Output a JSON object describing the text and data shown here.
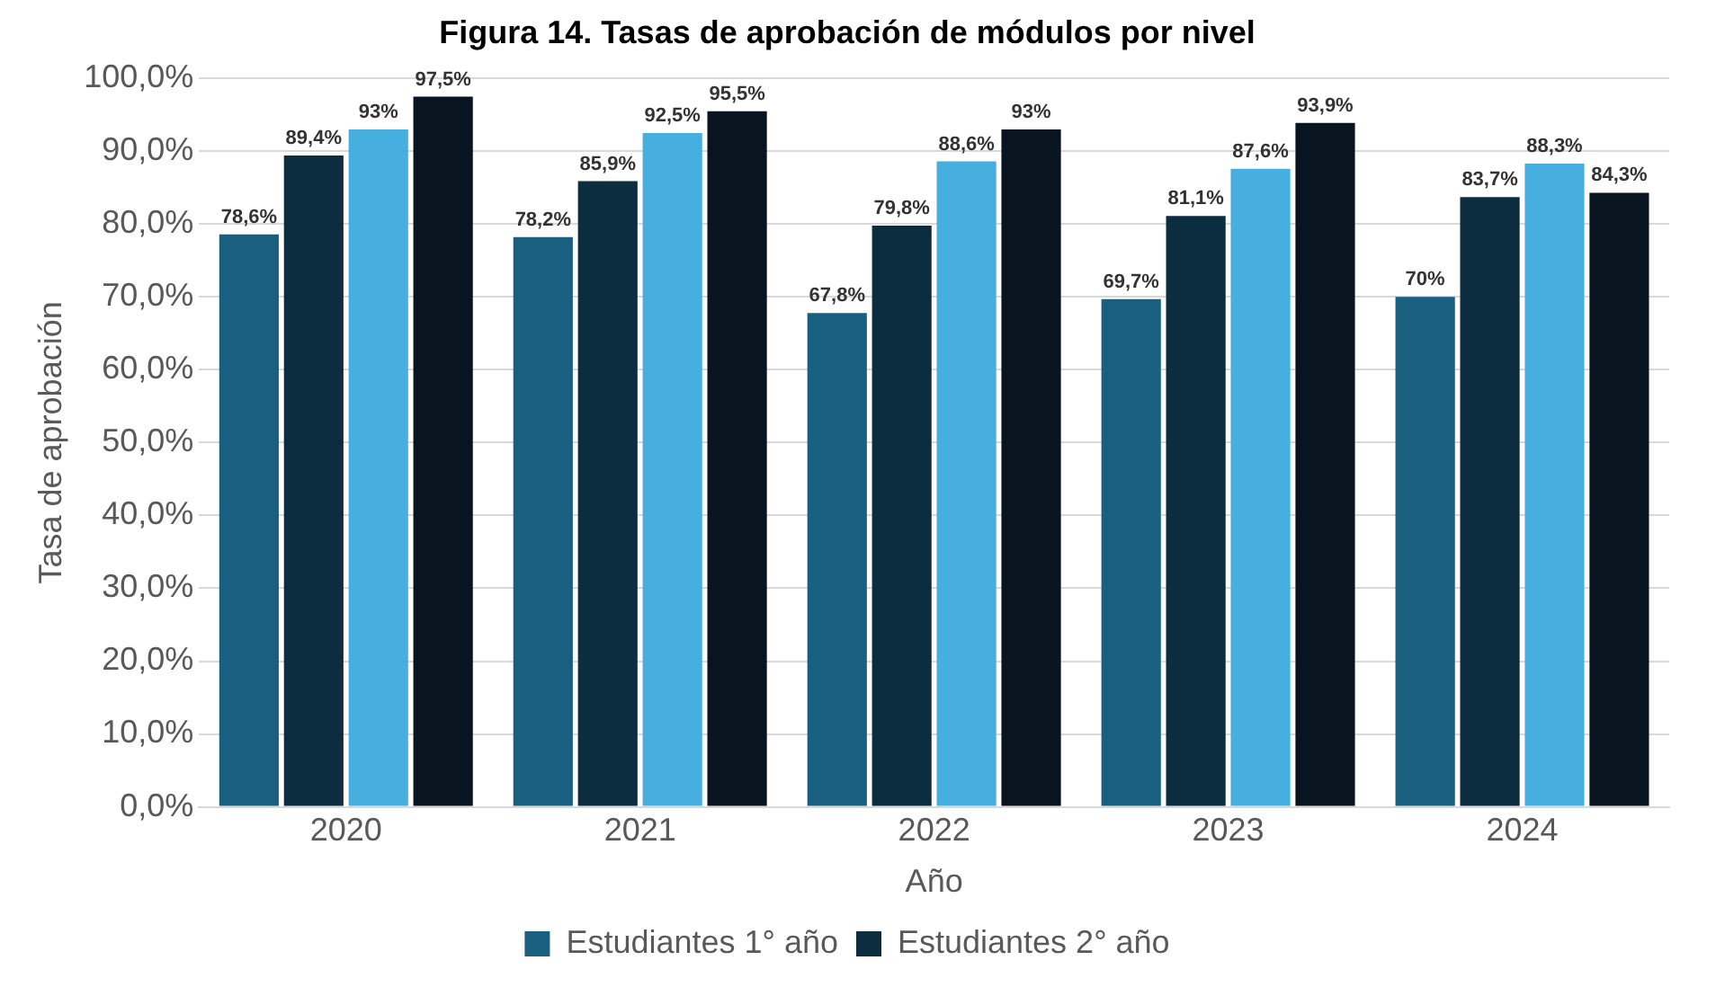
{
  "chart_data": {
    "type": "bar",
    "title": "Figura 14. Tasas de aprobación de módulos por nivel",
    "xlabel": "Año",
    "ylabel": "Tasa de aprobación",
    "categories": [
      "2020",
      "2021",
      "2022",
      "2023",
      "2024"
    ],
    "series": [
      {
        "name": "Estudiantes 1° año",
        "color": "#185f80",
        "values": [
          78.6,
          78.2,
          67.8,
          69.7,
          70
        ],
        "value_labels": [
          "78,6%",
          "78,2%",
          "67,8%",
          "69,7%",
          "70%"
        ]
      },
      {
        "name": "Estudiantes 2° año",
        "color": "#0c2d40",
        "values": [
          89.4,
          85.9,
          79.8,
          81.1,
          83.7
        ],
        "value_labels": [
          "89,4%",
          "85,9%",
          "79,8%",
          "81,1%",
          "83,7%"
        ]
      },
      {
        "color": "#46afe0",
        "values": [
          93,
          92.5,
          88.6,
          87.6,
          88.3
        ],
        "value_labels": [
          "93%",
          "92,5%",
          "88,6%",
          "87,6%",
          "88,3%"
        ]
      },
      {
        "color": "#08141f",
        "values": [
          97.5,
          95.5,
          93,
          93.9,
          84.3
        ],
        "value_labels": [
          "97,5%",
          "95,5%",
          "93%",
          "93,9%",
          "84,3%"
        ]
      }
    ],
    "ylim": [
      0,
      100
    ],
    "yticks": [
      {
        "value": 0,
        "label": "0,0%"
      },
      {
        "value": 10,
        "label": "10,0%"
      },
      {
        "value": 20,
        "label": "20,0%"
      },
      {
        "value": 30,
        "label": "30,0%"
      },
      {
        "value": 40,
        "label": "40,0%"
      },
      {
        "value": 50,
        "label": "50,0%"
      },
      {
        "value": 60,
        "label": "60,0%"
      },
      {
        "value": 70,
        "label": "70,0%"
      },
      {
        "value": 80,
        "label": "80,0%"
      },
      {
        "value": 90,
        "label": "90,0%"
      },
      {
        "value": 100,
        "label": "100,0%"
      }
    ],
    "grid": "y",
    "legend": "bottom"
  }
}
